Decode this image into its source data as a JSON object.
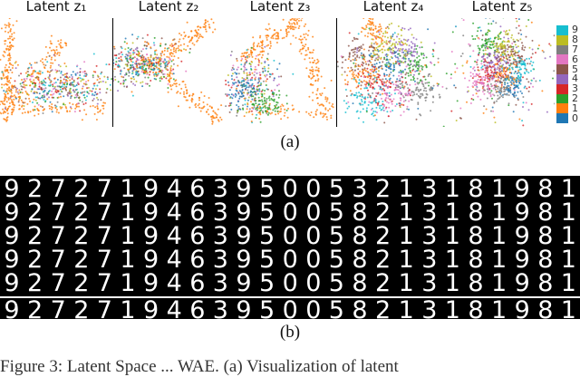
{
  "panel_a": {
    "caption": "(a)",
    "titles": [
      "Latent z₁",
      "Latent z₂",
      "Latent z₃",
      "Latent z₄",
      "Latent z₅"
    ],
    "colorbar": {
      "ticks": [
        "9",
        "8",
        "7",
        "6",
        "5",
        "4",
        "3",
        "2",
        "1",
        "0"
      ],
      "colors": [
        "#17becf",
        "#bcbd22",
        "#7f7f7f",
        "#e377c2",
        "#8c564b",
        "#9467bd",
        "#d62728",
        "#2ca02c",
        "#ff7f0e",
        "#1f77b4"
      ]
    }
  },
  "panel_b": {
    "caption": "(b)",
    "rows": [
      [
        "9",
        "2",
        "7",
        "2",
        "7",
        "1",
        "9",
        "4",
        "6",
        "3",
        "9",
        "5",
        "0",
        "0",
        "5",
        "3",
        "2",
        "1",
        "3",
        "1",
        "8",
        "1",
        "9",
        "8",
        "1"
      ],
      [
        "9",
        "2",
        "7",
        "2",
        "7",
        "1",
        "9",
        "4",
        "6",
        "3",
        "9",
        "5",
        "0",
        "0",
        "5",
        "8",
        "2",
        "1",
        "3",
        "1",
        "8",
        "1",
        "9",
        "8",
        "1"
      ],
      [
        "9",
        "2",
        "7",
        "2",
        "7",
        "1",
        "9",
        "4",
        "6",
        "3",
        "9",
        "5",
        "0",
        "0",
        "5",
        "8",
        "2",
        "1",
        "3",
        "1",
        "8",
        "1",
        "9",
        "8",
        "1"
      ],
      [
        "9",
        "2",
        "7",
        "2",
        "7",
        "1",
        "9",
        "4",
        "6",
        "3",
        "9",
        "5",
        "0",
        "0",
        "5",
        "8",
        "2",
        "1",
        "3",
        "1",
        "8",
        "1",
        "9",
        "8",
        "1"
      ],
      [
        "9",
        "2",
        "7",
        "2",
        "7",
        "1",
        "9",
        "4",
        "6",
        "3",
        "9",
        "5",
        "0",
        "0",
        "5",
        "8",
        "2",
        "1",
        "3",
        "1",
        "8",
        "1",
        "9",
        "8",
        "1"
      ],
      [
        "9",
        "2",
        "7",
        "2",
        "7",
        "1",
        "9",
        "4",
        "6",
        "3",
        "9",
        "5",
        "0",
        "0",
        "5",
        "8",
        "2",
        "1",
        "3",
        "1",
        "8",
        "1",
        "9",
        "8",
        "1"
      ]
    ]
  },
  "footer_text": "Figure 3: Latent Space ... WAE. (a) Visualization of latent"
}
